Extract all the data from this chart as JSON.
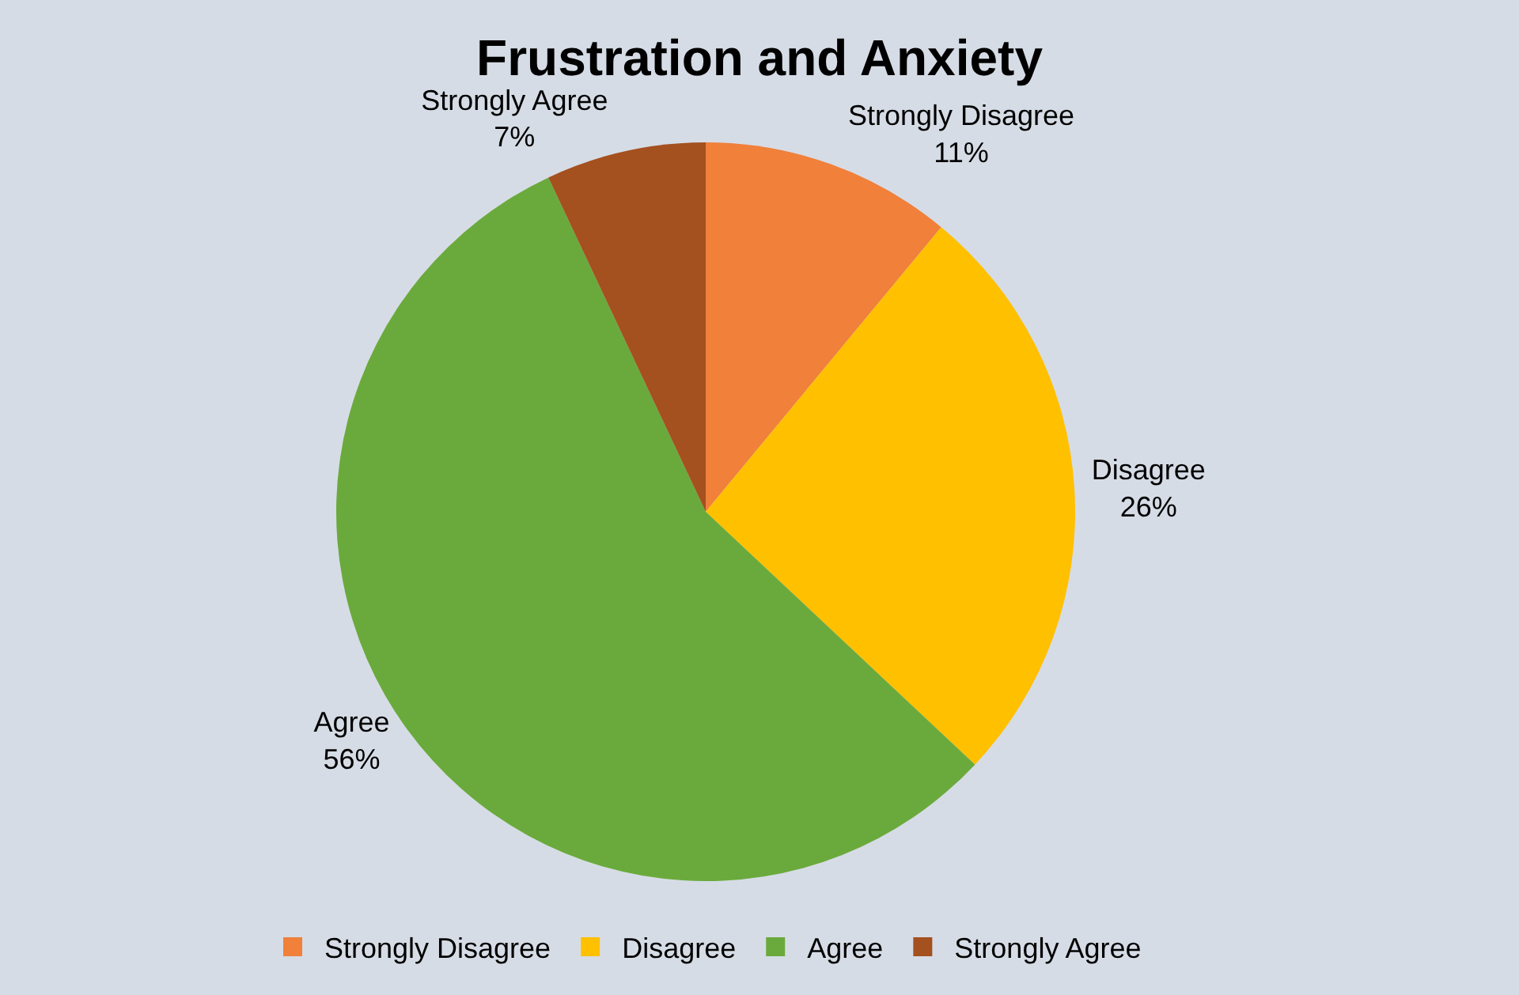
{
  "chart_data": {
    "type": "pie",
    "title": "Frustration and Anxiety",
    "categories": [
      "Strongly Disagree",
      "Disagree",
      "Agree",
      "Strongly Agree"
    ],
    "values": [
      11,
      26,
      56,
      7
    ],
    "value_labels": [
      "11%",
      "26%",
      "56%",
      "7%"
    ],
    "colors": [
      "#f0803a",
      "#ffc000",
      "#6aaa3c",
      "#a4501f"
    ],
    "legend": "bottom"
  }
}
